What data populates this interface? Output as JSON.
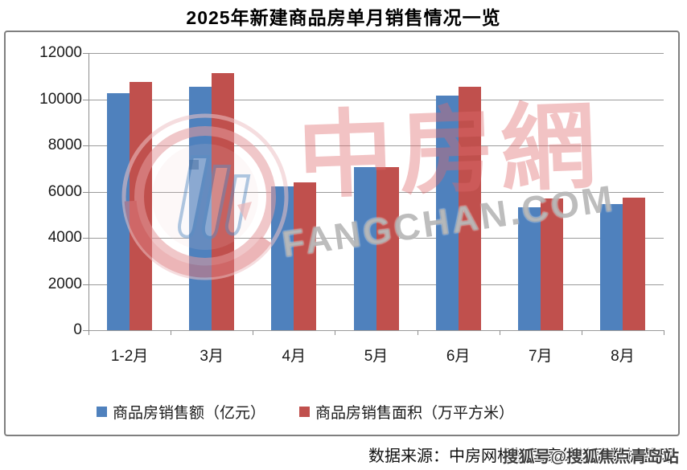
{
  "title": "2025年新建商品房单月销售情况一览",
  "chart_data": {
    "type": "bar",
    "title": "2025年新建商品房单月销售情况一览",
    "categories": [
      "1-2月",
      "3月",
      "4月",
      "5月",
      "6月",
      "7月",
      "8月"
    ],
    "series": [
      {
        "name": "商品房销售额（亿元）",
        "color": "#4F81BD",
        "values": [
          10259,
          10539,
          6237,
          7056,
          10150,
          5325,
          5449
        ]
      },
      {
        "name": "商品房销售面积（万平方米）",
        "color": "#C0504D",
        "values": [
          10746,
          11123,
          6393,
          7055,
          10534,
          5709,
          5744
        ]
      }
    ],
    "xlabel": "",
    "ylabel": "",
    "ylim": [
      0,
      12000
    ],
    "ytick_step": 2000,
    "yticks": [
      "0",
      "2000",
      "4000",
      "6000",
      "8000",
      "10000",
      "12000"
    ],
    "grid": true,
    "legend_position": "bottom"
  },
  "watermark": {
    "cn": "中房網",
    "en": "FANGCHAN.COM",
    "logo": "fangchan-logo"
  },
  "footer": {
    "source_text": "数据来源：中房网根据国家统计局数据整理",
    "watermark_text": "搜狐号@搜狐焦点青岛站"
  },
  "colors": {
    "series_blue": "#4F81BD",
    "series_red": "#C0504D",
    "gridline": "#9A9A9A",
    "box_border": "#7F7F7F",
    "text": "#1A1A1A"
  }
}
